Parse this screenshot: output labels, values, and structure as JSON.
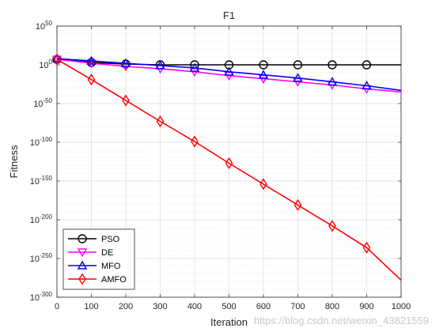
{
  "chart_data": {
    "type": "line",
    "title": "F1",
    "xlabel": "Iteration",
    "ylabel": "Fitness",
    "xlim": [
      0,
      1000
    ],
    "ylog": true,
    "ylim_exponent": [
      -300,
      50
    ],
    "x_ticks": [
      0,
      100,
      200,
      300,
      400,
      500,
      600,
      700,
      800,
      900,
      1000
    ],
    "y_ticks": [
      {
        "base": "10",
        "exp": "50",
        "value": 50
      },
      {
        "base": "10",
        "exp": "0",
        "value": 0
      },
      {
        "base": "10",
        "exp": "-50",
        "value": -50
      },
      {
        "base": "10",
        "exp": "-100",
        "value": -100
      },
      {
        "base": "10",
        "exp": "-150",
        "value": -150
      },
      {
        "base": "10",
        "exp": "-200",
        "value": -200
      },
      {
        "base": "10",
        "exp": "-250",
        "value": -250
      },
      {
        "base": "10",
        "exp": "-300",
        "value": -300
      }
    ],
    "grid": true,
    "legend_position": "bottom-left",
    "series": [
      {
        "name": "PSO",
        "color": "#000000",
        "marker": "circle",
        "x": [
          0,
          100,
          200,
          300,
          400,
          500,
          600,
          700,
          800,
          900,
          1000
        ],
        "log10_y": [
          7,
          3,
          1,
          0,
          0,
          0,
          0,
          0,
          0,
          0,
          0
        ]
      },
      {
        "name": "DE",
        "color": "#ff00ff",
        "marker": "triangle-down",
        "x": [
          0,
          100,
          200,
          300,
          400,
          500,
          600,
          700,
          800,
          900,
          1000
        ],
        "log10_y": [
          7,
          2,
          -2,
          -5,
          -9,
          -14,
          -18,
          -22,
          -26,
          -31,
          -35
        ]
      },
      {
        "name": "MFO",
        "color": "#0000ff",
        "marker": "triangle-up",
        "x": [
          0,
          100,
          200,
          300,
          400,
          500,
          600,
          700,
          800,
          900,
          1000
        ],
        "log10_y": [
          8,
          5,
          2,
          -1,
          -4,
          -9,
          -13,
          -17,
          -22,
          -27,
          -33
        ]
      },
      {
        "name": "AMFO",
        "color": "#ff0000",
        "marker": "diamond",
        "x": [
          0,
          100,
          200,
          300,
          400,
          500,
          600,
          700,
          800,
          900,
          1000
        ],
        "log10_y": [
          7,
          -19,
          -46,
          -73,
          -99,
          -127,
          -154,
          -181,
          -208,
          -236,
          -278
        ]
      }
    ]
  },
  "watermark": "https://blog.csdn.net/weixin_43821559"
}
